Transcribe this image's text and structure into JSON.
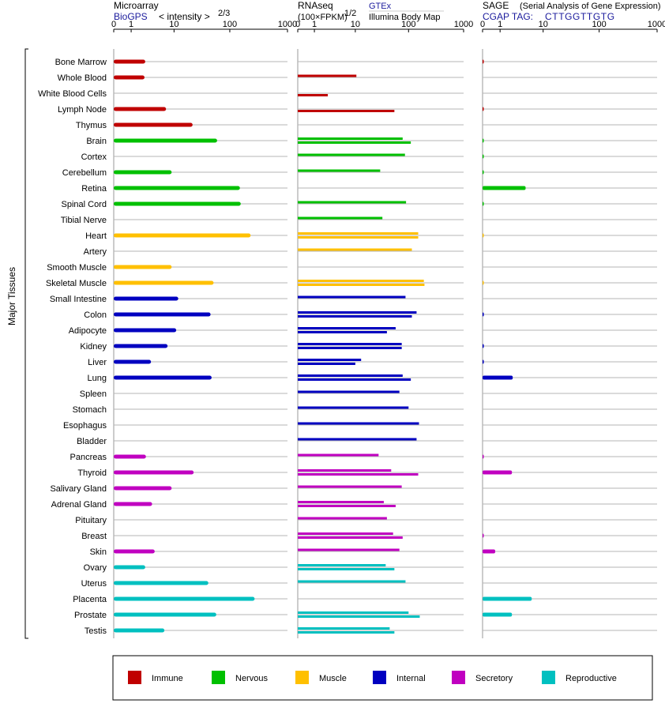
{
  "chart_data": {
    "type": "bar",
    "y_axis_label": "Major Tissues",
    "panels": [
      {
        "name": "Microarray",
        "source": "BioGPS",
        "scale_note": "< intensity >",
        "scale_exponent": "2/3",
        "ticks": [
          "0",
          "1",
          "10",
          "100",
          "1000"
        ],
        "xlim": [
          0,
          1000
        ]
      },
      {
        "name": "RNAseq",
        "scale_note": "(100×FPKM)",
        "scale_exponent": "1/2",
        "source_top": "GTEx",
        "source_bottom": "Illumina Body Map",
        "ticks": [
          "0",
          "1",
          "10",
          "100",
          "1000"
        ],
        "xlim": [
          0,
          1000
        ]
      },
      {
        "name": "SAGE",
        "subtitle": "(Serial Analysis of Gene Expression)",
        "tag_prefix": "CGAP TAG:",
        "tag": "CTTGGTTGTG",
        "ticks": [
          "0",
          "1",
          "10",
          "100",
          "1000"
        ],
        "xlim": [
          0,
          1000
        ]
      }
    ],
    "legend": [
      {
        "name": "Immune",
        "color": "#c00000"
      },
      {
        "name": "Nervous",
        "color": "#00c000"
      },
      {
        "name": "Muscle",
        "color": "#ffc000"
      },
      {
        "name": "Internal",
        "color": "#0000c0"
      },
      {
        "name": "Secretory",
        "color": "#c000c0"
      },
      {
        "name": "Reproductive",
        "color": "#00c0c0"
      }
    ],
    "tissues": [
      {
        "name": "Bone Marrow",
        "group": "Immune",
        "microarray": 2.5,
        "gtex": null,
        "ibm": null,
        "sage": 0.02
      },
      {
        "name": "Whole Blood",
        "group": "Immune",
        "microarray": 2.4,
        "gtex": 10.5,
        "ibm": null,
        "sage": null
      },
      {
        "name": "White Blood Cells",
        "group": "Immune",
        "microarray": null,
        "gtex": null,
        "ibm": 2.5,
        "sage": null
      },
      {
        "name": "Lymph Node",
        "group": "Immune",
        "microarray": 7,
        "gtex": null,
        "ibm": 55,
        "sage": 0.02
      },
      {
        "name": "Thymus",
        "group": "Immune",
        "microarray": 22,
        "gtex": null,
        "ibm": null,
        "sage": null
      },
      {
        "name": "Brain",
        "group": "Nervous",
        "microarray": 60,
        "gtex": 78,
        "ibm": 110,
        "sage": 0.02
      },
      {
        "name": "Cortex",
        "group": "Nervous",
        "microarray": null,
        "gtex": 86,
        "ibm": null,
        "sage": 0.02
      },
      {
        "name": "Cerebellum",
        "group": "Nervous",
        "microarray": 9,
        "gtex": 30,
        "ibm": null,
        "sage": 0.02
      },
      {
        "name": "Retina",
        "group": "Nervous",
        "microarray": 150,
        "gtex": null,
        "ibm": null,
        "sage": 4.5
      },
      {
        "name": "Spinal Cord",
        "group": "Nervous",
        "microarray": 155,
        "gtex": 90,
        "ibm": null,
        "sage": 0.02
      },
      {
        "name": "Tibial Nerve",
        "group": "Nervous",
        "microarray": null,
        "gtex": 33,
        "ibm": null,
        "sage": null
      },
      {
        "name": "Heart",
        "group": "Muscle",
        "microarray": 230,
        "gtex": 150,
        "ibm": 150,
        "sage": 0.01
      },
      {
        "name": "Artery",
        "group": "Muscle",
        "microarray": null,
        "gtex": 115,
        "ibm": null,
        "sage": null
      },
      {
        "name": "Smooth Muscle",
        "group": "Muscle",
        "microarray": 9,
        "gtex": null,
        "ibm": null,
        "sage": null
      },
      {
        "name": "Skeletal Muscle",
        "group": "Muscle",
        "microarray": 52,
        "gtex": 190,
        "ibm": 195,
        "sage": 0.01
      },
      {
        "name": "Small Intestine",
        "group": "Internal",
        "microarray": 12,
        "gtex": 88,
        "ibm": null,
        "sage": null
      },
      {
        "name": "Colon",
        "group": "Internal",
        "microarray": 46,
        "gtex": 140,
        "ibm": 115,
        "sage": 0.05
      },
      {
        "name": "Adipocyte",
        "group": "Internal",
        "microarray": 11,
        "gtex": 58,
        "ibm": 40,
        "sage": null
      },
      {
        "name": "Kidney",
        "group": "Internal",
        "microarray": 7.5,
        "gtex": 75,
        "ibm": 75,
        "sage": 0.05
      },
      {
        "name": "Liver",
        "group": "Internal",
        "microarray": 3.4,
        "gtex": 13,
        "ibm": 10,
        "sage": 0.05
      },
      {
        "name": "Lung",
        "group": "Internal",
        "microarray": 48,
        "gtex": 78,
        "ibm": 110,
        "sage": 2.3
      },
      {
        "name": "Spleen",
        "group": "Internal",
        "microarray": null,
        "gtex": 68,
        "ibm": null,
        "sage": null
      },
      {
        "name": "Stomach",
        "group": "Internal",
        "microarray": null,
        "gtex": 100,
        "ibm": null,
        "sage": null
      },
      {
        "name": "Esophagus",
        "group": "Internal",
        "microarray": null,
        "gtex": 155,
        "ibm": null,
        "sage": null
      },
      {
        "name": "Bladder",
        "group": "Internal",
        "microarray": null,
        "gtex": 140,
        "ibm": null,
        "sage": null
      },
      {
        "name": "Pancreas",
        "group": "Secretory",
        "microarray": 2.6,
        "gtex": 28,
        "ibm": null,
        "sage": 0.02
      },
      {
        "name": "Thyroid",
        "group": "Secretory",
        "microarray": 23,
        "gtex": 48,
        "ibm": 150,
        "sage": 2.2
      },
      {
        "name": "Salivary Gland",
        "group": "Secretory",
        "microarray": 9,
        "gtex": 75,
        "ibm": null,
        "sage": null
      },
      {
        "name": "Adrenal Gland",
        "group": "Secretory",
        "microarray": 3.6,
        "gtex": 35,
        "ibm": 58,
        "sage": null
      },
      {
        "name": "Pituitary",
        "group": "Secretory",
        "microarray": null,
        "gtex": 40,
        "ibm": null,
        "sage": null
      },
      {
        "name": "Breast",
        "group": "Secretory",
        "microarray": null,
        "gtex": 52,
        "ibm": 78,
        "sage": 0.02
      },
      {
        "name": "Skin",
        "group": "Secretory",
        "microarray": 4.1,
        "gtex": 68,
        "ibm": null,
        "sage": 0.65
      },
      {
        "name": "Ovary",
        "group": "Reproductive",
        "microarray": 2.5,
        "gtex": 38,
        "ibm": 55,
        "sage": null
      },
      {
        "name": "Uterus",
        "group": "Reproductive",
        "microarray": 42,
        "gtex": 88,
        "ibm": null,
        "sage": null
      },
      {
        "name": "Placenta",
        "group": "Reproductive",
        "microarray": 270,
        "gtex": null,
        "ibm": null,
        "sage": 6.0
      },
      {
        "name": "Prostate",
        "group": "Reproductive",
        "microarray": 58,
        "gtex": 100,
        "ibm": 160,
        "sage": 2.2
      },
      {
        "name": "Testis",
        "group": "Reproductive",
        "microarray": 6.5,
        "gtex": 45,
        "ibm": 55,
        "sage": null
      }
    ]
  }
}
